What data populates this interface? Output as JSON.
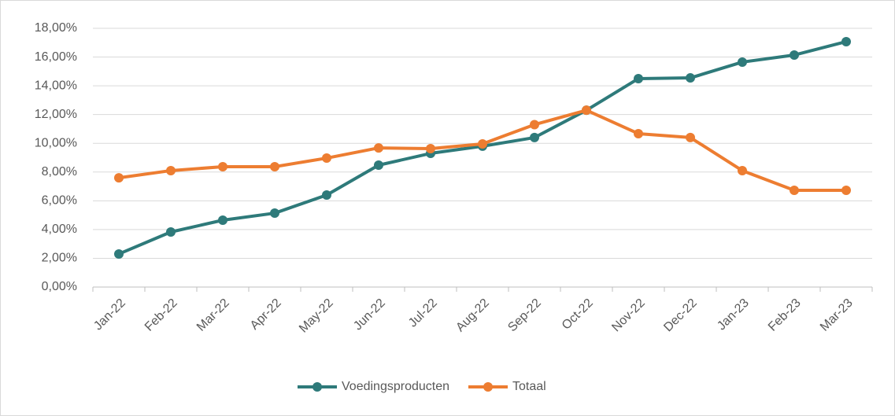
{
  "chart_data": {
    "type": "line",
    "categories": [
      "Jan-22",
      "Feb-22",
      "Mar-22",
      "Apr-22",
      "May-22",
      "Jun-22",
      "Jul-22",
      "Aug-22",
      "Sep-22",
      "Oct-22",
      "Nov-22",
      "Dec-22",
      "Jan-23",
      "Feb-23",
      "Mar-23"
    ],
    "series": [
      {
        "name": "Voedingsproducten",
        "color": "#2e7a7a",
        "values": [
          2.3,
          3.83,
          4.65,
          5.14,
          6.4,
          8.48,
          9.3,
          9.8,
          10.4,
          12.3,
          14.5,
          14.55,
          15.65,
          16.14,
          17.07
        ]
      },
      {
        "name": "Totaal",
        "color": "#ed7d31",
        "values": [
          7.6,
          8.1,
          8.37,
          8.37,
          8.97,
          9.68,
          9.63,
          9.96,
          11.3,
          12.3,
          10.67,
          10.4,
          8.1,
          6.73,
          6.73
        ]
      }
    ],
    "ylim": [
      0,
      18
    ],
    "yticks": [
      {
        "value": 0,
        "label": "0,00%"
      },
      {
        "value": 2,
        "label": "2,00%"
      },
      {
        "value": 4,
        "label": "4,00%"
      },
      {
        "value": 6,
        "label": "6,00%"
      },
      {
        "value": 8,
        "label": "8,00%"
      },
      {
        "value": 10,
        "label": "10,00%"
      },
      {
        "value": 12,
        "label": "12,00%"
      },
      {
        "value": 14,
        "label": "14,00%"
      },
      {
        "value": 16,
        "label": "16,00%"
      },
      {
        "value": 18,
        "label": "18,00%"
      }
    ],
    "grid": true,
    "legend": "bottom"
  }
}
